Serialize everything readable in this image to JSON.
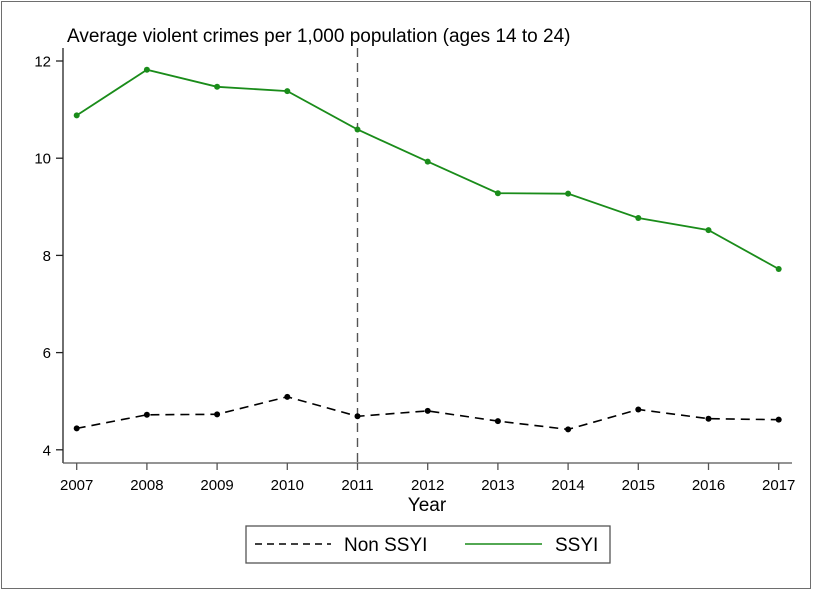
{
  "chart_data": {
    "type": "line",
    "title": "Average violent crimes per 1,000 population (ages 14 to 24)",
    "xlabel": "Year",
    "ylabel": "",
    "x": [
      2007,
      2008,
      2009,
      2010,
      2011,
      2012,
      2013,
      2014,
      2015,
      2016,
      2017
    ],
    "xticks": [
      "2007",
      "2008",
      "2009",
      "2010",
      "2011",
      "2012",
      "2013",
      "2014",
      "2015",
      "2016",
      "2017"
    ],
    "yticks": [
      "4",
      "6",
      "8",
      "10",
      "12"
    ],
    "ytick_values": [
      4,
      6,
      8,
      10,
      12
    ],
    "ylim": [
      4,
      12
    ],
    "grid": false,
    "vline": {
      "x": 2011,
      "style": "dashed",
      "color": "#555555"
    },
    "series": [
      {
        "name": "Non SSYI",
        "style": "dashed",
        "color": "#000000",
        "values": [
          4.44,
          4.72,
          4.73,
          5.09,
          4.69,
          4.8,
          4.59,
          4.42,
          4.83,
          4.64,
          4.62
        ]
      },
      {
        "name": "SSYI",
        "style": "solid",
        "color": "#1a8c1a",
        "values": [
          10.88,
          11.82,
          11.47,
          11.38,
          10.59,
          9.93,
          9.28,
          9.27,
          8.77,
          8.52,
          7.72
        ]
      }
    ],
    "legend": {
      "position": "bottom",
      "entries": [
        "Non SSYI",
        "SSYI"
      ]
    }
  }
}
